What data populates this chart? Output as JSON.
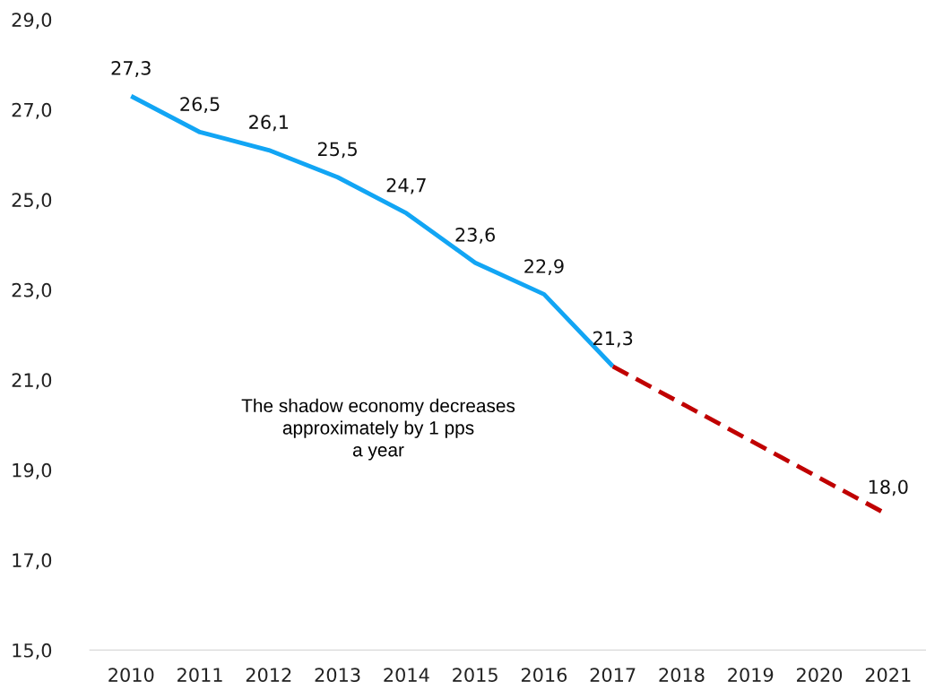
{
  "chart_data": {
    "type": "line",
    "categories": [
      "2010",
      "2011",
      "2012",
      "2013",
      "2014",
      "2015",
      "2016",
      "2017",
      "2018",
      "2019",
      "2020",
      "2021"
    ],
    "series": [
      {
        "color": "#12a5f4",
        "line_style": "solid",
        "values": [
          27.3,
          26.5,
          26.1,
          25.5,
          24.7,
          23.6,
          22.9,
          21.3,
          null,
          null,
          null,
          null
        ],
        "value_labels": [
          "27,3",
          "26,5",
          "26,1",
          "25,5",
          "24,7",
          "23,6",
          "22,9",
          "21,3",
          null,
          null,
          null,
          null
        ]
      },
      {
        "color": "#c00000",
        "line_style": "dashed",
        "values": [
          null,
          null,
          null,
          null,
          null,
          null,
          null,
          21.3,
          null,
          null,
          null,
          18.0
        ],
        "value_labels": [
          null,
          null,
          null,
          null,
          null,
          null,
          null,
          null,
          null,
          null,
          null,
          "18,0"
        ]
      }
    ],
    "ylim": [
      15,
      29
    ],
    "yticks": [
      {
        "value": 15,
        "label": "15,0"
      },
      {
        "value": 17,
        "label": "17,0"
      },
      {
        "value": 19,
        "label": "19,0"
      },
      {
        "value": 21,
        "label": "21,0"
      },
      {
        "value": 23,
        "label": "23,0"
      },
      {
        "value": 25,
        "label": "25,0"
      },
      {
        "value": 27,
        "label": "27,0"
      },
      {
        "value": 29,
        "label": "29,0"
      }
    ],
    "grid": false,
    "marker": "none",
    "annotations": [
      "The shadow economy decreases\napproximately by 1 pps\na year"
    ]
  }
}
